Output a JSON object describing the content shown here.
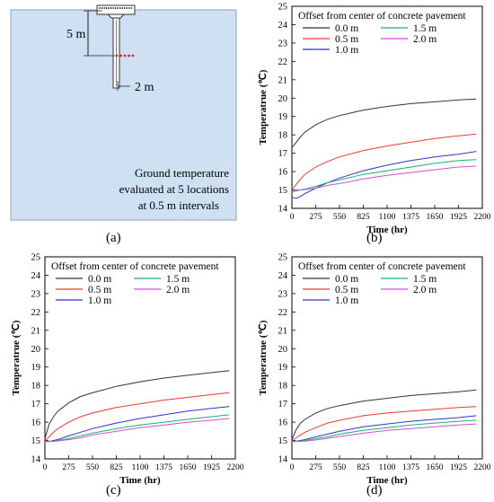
{
  "colors": {
    "s00": "#333333",
    "s05": "#ee3b33",
    "s10": "#3333cc",
    "s15": "#14b36b",
    "s20": "#d24fd6",
    "scheme_bg": "#cfe0f2",
    "scheme_border": "#8aa4c0",
    "sensor_dots": "#e0242b"
  },
  "scheme": {
    "depth_label": "5 m",
    "offset_label": "2 m",
    "note_line1": "Ground temperature",
    "note_line2": "evaluated at 5 locations",
    "note_line3": "at 0.5 m intervals",
    "caption": "(a)"
  },
  "chart_data": [
    {
      "id": "b",
      "type": "line",
      "caption": "(b)",
      "legend_title": "Offset from center of concrete pavement",
      "xlabel": "Time (hr)",
      "ylabel": "Temperatrue (℃)",
      "xlim": [
        0,
        2200
      ],
      "ylim": [
        14,
        25
      ],
      "xticks": [
        0,
        275,
        550,
        825,
        1100,
        1375,
        1650,
        1925,
        2200
      ],
      "yticks": [
        14,
        15,
        16,
        17,
        18,
        19,
        20,
        21,
        22,
        23,
        24,
        25
      ],
      "grid": false,
      "legend_position": "top-left",
      "x": [
        0,
        50,
        100,
        150,
        275,
        412,
        550,
        825,
        1100,
        1375,
        1650,
        1925,
        2130
      ],
      "series": [
        {
          "name": "0.0 m",
          "color_key": "s00",
          "values": [
            17.3,
            17.6,
            17.9,
            18.15,
            18.55,
            18.85,
            19.05,
            19.35,
            19.55,
            19.7,
            19.8,
            19.9,
            19.95
          ]
        },
        {
          "name": "0.5 m",
          "color_key": "s05",
          "values": [
            15.0,
            15.3,
            15.6,
            15.85,
            16.25,
            16.55,
            16.8,
            17.15,
            17.4,
            17.6,
            17.8,
            17.95,
            18.05
          ]
        },
        {
          "name": "1.0 m",
          "color_key": "s10",
          "values": [
            14.6,
            14.55,
            14.65,
            14.8,
            15.1,
            15.4,
            15.65,
            16.05,
            16.35,
            16.6,
            16.8,
            16.95,
            17.1
          ]
        },
        {
          "name": "1.5 m",
          "color_key": "s15",
          "values": [
            14.9,
            14.95,
            15.0,
            15.05,
            15.2,
            15.4,
            15.55,
            15.85,
            16.05,
            16.25,
            16.45,
            16.6,
            16.65
          ]
        },
        {
          "name": "2.0 m",
          "color_key": "s20",
          "values": [
            14.95,
            15.0,
            15.0,
            15.02,
            15.1,
            15.25,
            15.35,
            15.6,
            15.8,
            15.95,
            16.1,
            16.25,
            16.3
          ]
        }
      ]
    },
    {
      "id": "c",
      "type": "line",
      "caption": "(c)",
      "legend_title": "Offset from center of concrete pavement",
      "xlabel": "Time (hr)",
      "ylabel": "Temperatrue (℃)",
      "xlim": [
        0,
        2200
      ],
      "ylim": [
        14,
        25
      ],
      "xticks": [
        0,
        275,
        550,
        825,
        1100,
        1375,
        1650,
        1925,
        2200
      ],
      "yticks": [
        14,
        15,
        16,
        17,
        18,
        19,
        20,
        21,
        22,
        23,
        24,
        25
      ],
      "grid": false,
      "legend_position": "top-left",
      "x": [
        0,
        50,
        100,
        150,
        275,
        412,
        550,
        825,
        1100,
        1375,
        1650,
        1925,
        2130
      ],
      "series": [
        {
          "name": "0.0 m",
          "color_key": "s00",
          "values": [
            15.1,
            15.9,
            16.3,
            16.6,
            17.05,
            17.4,
            17.6,
            17.95,
            18.2,
            18.4,
            18.55,
            18.7,
            18.8
          ]
        },
        {
          "name": "0.5 m",
          "color_key": "s05",
          "values": [
            15.0,
            15.2,
            15.45,
            15.65,
            16.0,
            16.3,
            16.5,
            16.8,
            17.0,
            17.2,
            17.35,
            17.5,
            17.6
          ]
        },
        {
          "name": "1.0 m",
          "color_key": "s10",
          "values": [
            14.95,
            14.95,
            15.0,
            15.05,
            15.25,
            15.45,
            15.65,
            15.95,
            16.2,
            16.4,
            16.6,
            16.75,
            16.85
          ]
        },
        {
          "name": "1.5 m",
          "color_key": "s15",
          "values": [
            14.95,
            14.95,
            14.97,
            15.0,
            15.1,
            15.25,
            15.4,
            15.65,
            15.85,
            16.0,
            16.15,
            16.3,
            16.4
          ]
        },
        {
          "name": "2.0 m",
          "color_key": "s20",
          "values": [
            14.95,
            14.95,
            14.96,
            14.98,
            15.05,
            15.15,
            15.3,
            15.5,
            15.7,
            15.85,
            16.0,
            16.1,
            16.2
          ]
        }
      ]
    },
    {
      "id": "d",
      "type": "line",
      "caption": "(d)",
      "legend_title": "Offset from center of concrete pavement",
      "xlabel": "Time (hr)",
      "ylabel": "Temperatrue (℃)",
      "xlim": [
        0,
        2200
      ],
      "ylim": [
        14,
        25
      ],
      "xticks": [
        0,
        275,
        550,
        825,
        1100,
        1375,
        1650,
        1925,
        2200
      ],
      "yticks": [
        14,
        15,
        16,
        17,
        18,
        19,
        20,
        21,
        22,
        23,
        24,
        25
      ],
      "grid": false,
      "legend_position": "top-left",
      "x": [
        0,
        50,
        100,
        150,
        275,
        412,
        550,
        825,
        1100,
        1375,
        1650,
        1925,
        2130
      ],
      "series": [
        {
          "name": "0.0 m",
          "color_key": "s00",
          "values": [
            15.05,
            15.6,
            15.95,
            16.15,
            16.5,
            16.75,
            16.9,
            17.15,
            17.3,
            17.45,
            17.55,
            17.65,
            17.75
          ]
        },
        {
          "name": "0.5 m",
          "color_key": "s05",
          "values": [
            15.0,
            15.15,
            15.3,
            15.45,
            15.7,
            15.95,
            16.1,
            16.35,
            16.5,
            16.6,
            16.7,
            16.8,
            16.85
          ]
        },
        {
          "name": "1.0 m",
          "color_key": "s10",
          "values": [
            14.95,
            14.97,
            15.0,
            15.05,
            15.2,
            15.35,
            15.5,
            15.75,
            15.9,
            16.05,
            16.15,
            16.25,
            16.35
          ]
        },
        {
          "name": "1.5 m",
          "color_key": "s15",
          "values": [
            14.95,
            14.95,
            14.97,
            15.0,
            15.1,
            15.2,
            15.35,
            15.55,
            15.7,
            15.85,
            15.95,
            16.05,
            16.1
          ]
        },
        {
          "name": "2.0 m",
          "color_key": "s20",
          "values": [
            14.95,
            14.95,
            14.96,
            14.97,
            15.03,
            15.12,
            15.22,
            15.4,
            15.55,
            15.65,
            15.75,
            15.85,
            15.9
          ]
        }
      ]
    }
  ]
}
